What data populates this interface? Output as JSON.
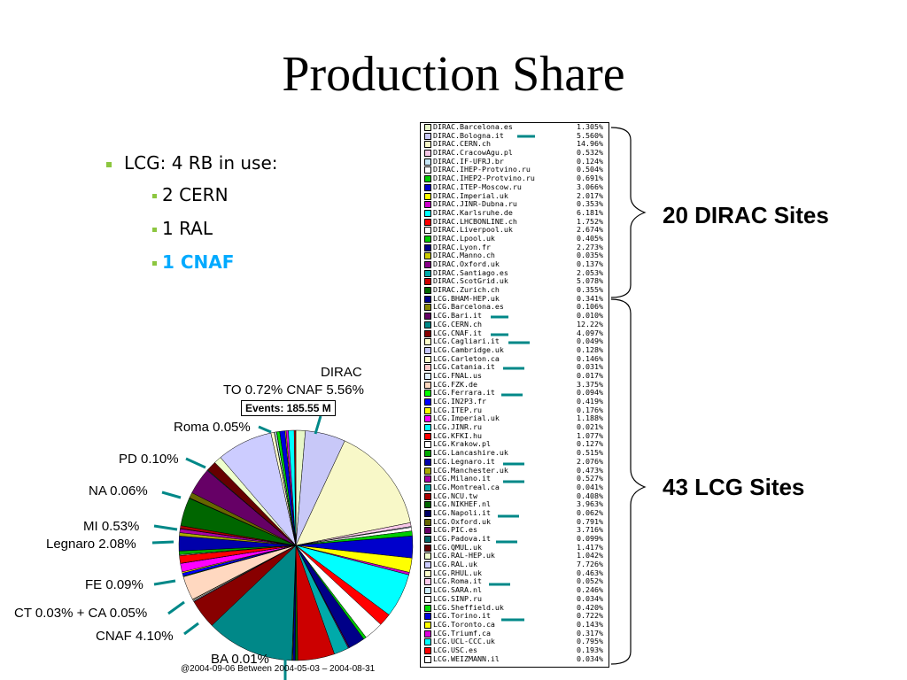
{
  "title": "Production Share",
  "bullets": {
    "main": "LCG: 4 RB in use:",
    "items": [
      "2 CERN",
      "1 RAL",
      "1 CNAF"
    ]
  },
  "dirac_sites_label": "20 DIRAC Sites",
  "lcg_sites_label": "43 LCG Sites",
  "events_label": "Events: 185.55 M",
  "footer": "@2004-09-06  Between  2004-05-03 – 2004-08-31",
  "pie_labels": {
    "dirac": "DIRAC",
    "to_cnaf": "TO 0.72% CNAF 5.56%",
    "roma": "Roma 0.05%",
    "pd": "PD 0.10%",
    "na": "NA 0.06%",
    "mi": "MI 0.53%",
    "legnaro": "Legnaro 2.08%",
    "fe": "FE 0.09%",
    "ct": "CT 0.03% + CA 0.05%",
    "cnaf": "CNAF 4.10%",
    "ba": "BA 0.01%"
  },
  "chart_data": {
    "type": "pie",
    "categories": [
      "DIRAC.Barcelona.es",
      "DIRAC.Bologna.it",
      "DIRAC.CERN.ch",
      "DIRAC.CracowAgu.pl",
      "DIRAC.IF-UFRJ.br",
      "DIRAC.IHEP-Protvino.ru",
      "DIRAC.IHEP2-Protvino.ru",
      "DIRAC.ITEP-Moscow.ru",
      "DIRAC.Imperial.uk",
      "DIRAC.JINR-Dubna.ru",
      "DIRAC.Karlsruhe.de",
      "DIRAC.LHCBONLINE.ch",
      "DIRAC.Liverpool.uk",
      "DIRAC.Lpool.uk",
      "DIRAC.Lyon.fr",
      "DIRAC.Manno.ch",
      "DIRAC.Oxford.uk",
      "DIRAC.Santiago.es",
      "DIRAC.ScotGrid.uk",
      "DIRAC.Zurich.ch",
      "LCG.BHAM-HEP.uk",
      "LCG.Barcelona.es",
      "LCG.Bari.it",
      "LCG.CERN.ch",
      "LCG.CNAF.it",
      "LCG.Cagliari.it",
      "LCG.Cambridge.uk",
      "LCG.Carleton.ca",
      "LCG.Catania.it",
      "LCG.FNAL.us",
      "LCG.FZK.de",
      "LCG.Ferrara.it",
      "LCG.IN2P3.fr",
      "LCG.ITEP.ru",
      "LCG.Imperial.uk",
      "LCG.JINR.ru",
      "LCG.KFKI.hu",
      "LCG.Krakow.pl",
      "LCG.Lancashire.uk",
      "LCG.Legnaro.it",
      "LCG.Manchester.uk",
      "LCG.Milano.it",
      "LCG.Montreal.ca",
      "LCG.NCU.tw",
      "LCG.NIKHEF.nl",
      "LCG.Napoli.it",
      "LCG.Oxford.uk",
      "LCG.PIC.es",
      "LCG.Padova.it",
      "LCG.QMUL.uk",
      "LCG.RAL-HEP.uk",
      "LCG.RAL.uk",
      "LCG.RHUL.uk",
      "LCG.Roma.it",
      "LCG.SARA.nl",
      "LCG.SINP.ru",
      "LCG.Sheffield.uk",
      "LCG.Torino.it",
      "LCG.Toronto.ca",
      "LCG.Triumf.ca",
      "LCG.UCL-CCC.uk",
      "LCG.USC.es",
      "LCG.WEIZMANN.il"
    ],
    "values": [
      1.305,
      5.56,
      14.96,
      0.532,
      0.124,
      0.504,
      0.691,
      3.066,
      2.017,
      0.353,
      6.181,
      1.752,
      2.674,
      0.405,
      2.273,
      0.035,
      0.137,
      2.053,
      5.078,
      0.355,
      0.341,
      0.106,
      0.01,
      12.22,
      4.097,
      0.049,
      0.128,
      0.146,
      0.031,
      0.017,
      3.375,
      0.094,
      0.419,
      0.176,
      1.188,
      0.021,
      1.077,
      0.127,
      0.515,
      2.076,
      0.473,
      0.527,
      0.041,
      0.408,
      3.963,
      0.062,
      0.791,
      3.716,
      0.099,
      1.417,
      1.042,
      7.726,
      0.463,
      0.052,
      0.246,
      0.034,
      0.42,
      0.722,
      0.143,
      0.317,
      0.795,
      0.193,
      0.034
    ],
    "labels": [
      "1.305%",
      "5.560%",
      "14.96%",
      "0.532%",
      "0.124%",
      "0.504%",
      "0.691%",
      "3.066%",
      "2.017%",
      "0.353%",
      "6.181%",
      "1.752%",
      "2.674%",
      "0.405%",
      "2.273%",
      "0.035%",
      "0.137%",
      "2.053%",
      "5.078%",
      "0.355%",
      "0.341%",
      "0.106%",
      "0.010%",
      "12.22%",
      "4.097%",
      "0.049%",
      "0.128%",
      "0.146%",
      "0.031%",
      "0.017%",
      "3.375%",
      "0.094%",
      "0.419%",
      "0.176%",
      "1.188%",
      "0.021%",
      "1.077%",
      "0.127%",
      "0.515%",
      "2.076%",
      "0.473%",
      "0.527%",
      "0.041%",
      "0.408%",
      "3.963%",
      "0.062%",
      "0.791%",
      "3.716%",
      "0.099%",
      "1.417%",
      "1.042%",
      "7.726%",
      "0.463%",
      "0.052%",
      "0.246%",
      "0.034%",
      "0.420%",
      "0.722%",
      "0.143%",
      "0.317%",
      "0.795%",
      "0.193%",
      "0.034%"
    ],
    "colors": [
      "#e8f8c8",
      "#c8c8f8",
      "#f8f8c8",
      "#f8c8e8",
      "#c8e8f8",
      "#ffffff",
      "#00cc00",
      "#0000cc",
      "#ffff00",
      "#cc00cc",
      "#00ffff",
      "#ff0000",
      "#ffffff",
      "#00cc00",
      "#000088",
      "#cccc00",
      "#880088",
      "#00aaaa",
      "#cc0000",
      "#006600",
      "#000088",
      "#888800",
      "#660066",
      "#008888",
      "#880000",
      "#ffffcc",
      "#c8c8ff",
      "#ffffcc",
      "#ffc8c8",
      "#e0f0ff",
      "#ffd8c0",
      "#00ff00",
      "#0000ff",
      "#ffff00",
      "#ff00ff",
      "#00ffff",
      "#ff0000",
      "#ffffff",
      "#00aa00",
      "#0000aa",
      "#aaaa00",
      "#aa00aa",
      "#00aaaa",
      "#aa0000",
      "#006600",
      "#000066",
      "#666600",
      "#660066",
      "#006666",
      "#660000",
      "#eeffcc",
      "#ccccff",
      "#ffffcc",
      "#ffccee",
      "#cceeff",
      "#ffffff",
      "#00dd00",
      "#0000dd",
      "#ffff00",
      "#dd00dd",
      "#00ffff",
      "#ff0000",
      "#ffffff"
    ],
    "title": "",
    "legend_position": "right"
  }
}
